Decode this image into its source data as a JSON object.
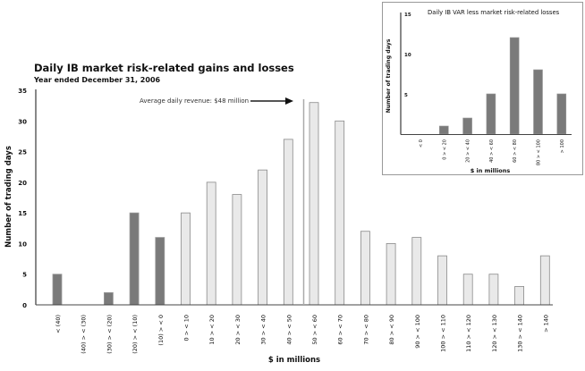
{
  "chart_data": [
    {
      "type": "bar",
      "title": "Daily IB market risk-related gains and losses",
      "subtitle": "Year ended December 31, 2006",
      "xlabel": "$ in millions",
      "ylabel": "Number of trading days",
      "ylim": [
        0,
        35
      ],
      "yticks": [
        0,
        5,
        10,
        15,
        20,
        25,
        30,
        35
      ],
      "grid": false,
      "categories": [
        "< (40)",
        "(40) > < (30)",
        "(30) > < (20)",
        "(20) > < (10)",
        "(10) > < 0",
        "0 > < 10",
        "10 > < 20",
        "20 > < 30",
        "30 > < 40",
        "40 > < 50",
        "50 > < 60",
        "60 > < 70",
        "70 > < 80",
        "80 > < 90",
        "90 > < 100",
        "100 > < 110",
        "110 > < 120",
        "120 > < 130",
        "130 > < 140",
        "> 140"
      ],
      "values": [
        5,
        0,
        2,
        15,
        11,
        15,
        20,
        18,
        22,
        27,
        33,
        30,
        12,
        10,
        11,
        8,
        5,
        5,
        3,
        8
      ],
      "colors": {
        "loss": "#7a7a7a",
        "gain": "#e9e9e9",
        "gain_stroke": "#8a8a8a"
      },
      "annotation": {
        "text": "Average daily revenue: $48 million",
        "x_value": 48
      }
    },
    {
      "type": "bar",
      "title": "Daily IB VAR less market risk-related losses",
      "xlabel": "$ in millions",
      "ylabel": "Number of trading days",
      "ylim": [
        0,
        15
      ],
      "yticks": [
        5,
        10,
        15
      ],
      "grid": false,
      "categories": [
        "< 0",
        "0 > < 20",
        "20 > < 40",
        "40 > < 60",
        "60 > < 80",
        "80 > < 100",
        "> 100"
      ],
      "values": [
        0,
        1,
        2,
        5,
        12,
        8,
        5
      ],
      "colors": {
        "bar": "#7a7a7a"
      }
    }
  ]
}
